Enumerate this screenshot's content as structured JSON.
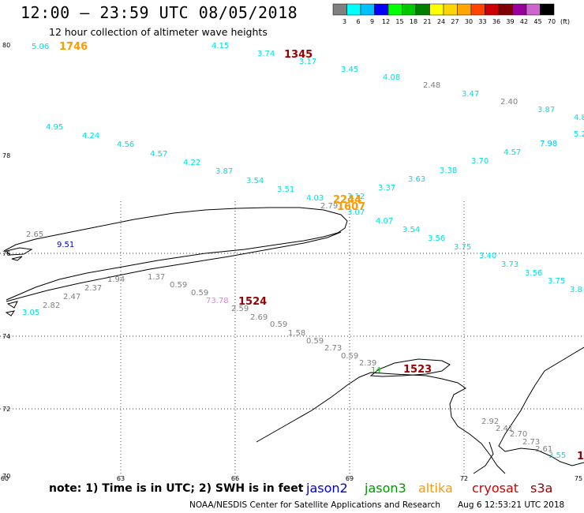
{
  "header": {
    "title": "12:00 – 23:59 UTC 08/05/2018",
    "subtitle": "12 hour collection of altimeter wave heights"
  },
  "scale": {
    "unit": "(ft)",
    "ticks": [
      "3",
      "6",
      "9",
      "12",
      "15",
      "18",
      "21",
      "24",
      "27",
      "30",
      "33",
      "36",
      "39",
      "42",
      "45",
      "70"
    ],
    "colors": [
      "#808080",
      "#00ffff",
      "#00bfff",
      "#0000ff",
      "#00ff00",
      "#00c800",
      "#008000",
      "#ffff00",
      "#ffd700",
      "#ffa500",
      "#ff4500",
      "#cc0000",
      "#800000",
      "#990099",
      "#cc66cc",
      "#000000"
    ]
  },
  "map": {
    "lat_labels": [
      "80",
      "78",
      "76",
      "74",
      "72",
      "70"
    ],
    "lon_labels": [
      "60",
      "63",
      "66",
      "69",
      "72",
      "75"
    ]
  },
  "observations": [
    {
      "text": "5.06",
      "color": "#00e0e0"
    },
    {
      "text": "4.15",
      "color": "#00e0e0"
    },
    {
      "text": "3.74",
      "color": "#00e0e0"
    },
    {
      "text": "3.17",
      "color": "#00e0e0"
    },
    {
      "text": "3.45",
      "color": "#00e0e0"
    },
    {
      "text": "4.08",
      "color": "#00e0e0"
    },
    {
      "text": "2.48",
      "color": "#808080"
    },
    {
      "text": "3.47",
      "color": "#00e0e0"
    },
    {
      "text": "2.40",
      "color": "#808080"
    },
    {
      "text": "3.87",
      "color": "#00e0e0"
    },
    {
      "text": "4.8",
      "color": "#00e0e0"
    },
    {
      "text": "5.2",
      "color": "#00e0e0"
    },
    {
      "text": "7.98",
      "color": "#00bfff"
    },
    {
      "text": "4.57",
      "color": "#00e0e0"
    },
    {
      "text": "3.70",
      "color": "#00e0e0"
    },
    {
      "text": "3.38",
      "color": "#00e0e0"
    },
    {
      "text": "3.63",
      "color": "#00e0e0"
    },
    {
      "text": "3.37",
      "color": "#00e0e0"
    },
    {
      "text": "4.95",
      "color": "#00e0e0"
    },
    {
      "text": "4.24",
      "color": "#00e0e0"
    },
    {
      "text": "4.56",
      "color": "#00e0e0"
    },
    {
      "text": "4.57",
      "color": "#00e0e0"
    },
    {
      "text": "4.22",
      "color": "#00e0e0"
    },
    {
      "text": "3.87",
      "color": "#00e0e0"
    },
    {
      "text": "3.54",
      "color": "#00e0e0"
    },
    {
      "text": "3.51",
      "color": "#00e0e0"
    },
    {
      "text": "4.03",
      "color": "#00e0e0"
    },
    {
      "text": "2.79",
      "color": "#808080"
    },
    {
      "text": "3.12",
      "color": "#00e0e0"
    },
    {
      "text": "3.07",
      "color": "#00e0e0"
    },
    {
      "text": "4.07",
      "color": "#00e0e0"
    },
    {
      "text": "3.54",
      "color": "#00e0e0"
    },
    {
      "text": "3.56",
      "color": "#00e0e0"
    },
    {
      "text": "3.75",
      "color": "#00e0e0"
    },
    {
      "text": "3.40",
      "color": "#00e0e0"
    },
    {
      "text": "3.73",
      "color": "#00e0e0"
    },
    {
      "text": "3.56",
      "color": "#00e0e0"
    },
    {
      "text": "3.75",
      "color": "#00e0e0"
    },
    {
      "text": "3.8",
      "color": "#00e0e0"
    },
    {
      "text": "2.65",
      "color": "#808080"
    },
    {
      "text": "9.51",
      "color": "#0000cc"
    },
    {
      "text": "1.94",
      "color": "#808080"
    },
    {
      "text": "1.37",
      "color": "#808080"
    },
    {
      "text": "2.37",
      "color": "#808080"
    },
    {
      "text": "2.47",
      "color": "#808080"
    },
    {
      "text": "2.82",
      "color": "#808080"
    },
    {
      "text": "3.05",
      "color": "#00e0e0"
    },
    {
      "text": "0.59",
      "color": "#808080"
    },
    {
      "text": "0.59",
      "color": "#808080"
    },
    {
      "text": "73.78",
      "color": "#e080e0"
    },
    {
      "text": "2.59",
      "color": "#808080"
    },
    {
      "text": "2.69",
      "color": "#808080"
    },
    {
      "text": "0.59",
      "color": "#808080"
    },
    {
      "text": "1.58",
      "color": "#808080"
    },
    {
      "text": "0.59",
      "color": "#808080"
    },
    {
      "text": "2.73",
      "color": "#808080"
    },
    {
      "text": "0.59",
      "color": "#808080"
    },
    {
      "text": "2.39",
      "color": "#808080"
    },
    {
      "text": "14",
      "color": "#00d000"
    },
    {
      "text": "2.92",
      "color": "#808080"
    },
    {
      "text": "2.41",
      "color": "#808080"
    },
    {
      "text": "2.70",
      "color": "#808080"
    },
    {
      "text": "2.73",
      "color": "#808080"
    },
    {
      "text": "2.61",
      "color": "#808080"
    },
    {
      "text": "3.55",
      "color": "#00e0e0"
    }
  ],
  "time_labels": [
    {
      "text": "1746",
      "color": "#ff9900"
    },
    {
      "text": "1345",
      "color": "#990000"
    },
    {
      "text": "2244",
      "color": "#ff9900"
    },
    {
      "text": "1607",
      "color": "#ff9900"
    },
    {
      "text": "1524",
      "color": "#990000"
    },
    {
      "text": "1523",
      "color": "#990000"
    },
    {
      "text": "1",
      "color": "#990000"
    }
  ],
  "footer": {
    "note": "note:  1) Time is in UTC;  2) SWH is in feet",
    "satellites": [
      {
        "name": "jason2",
        "color": "#0000cc"
      },
      {
        "name": "jason3",
        "color": "#009900"
      },
      {
        "name": "altika",
        "color": "#ff9900"
      },
      {
        "name": "cryosat",
        "color": "#cc0000"
      },
      {
        "name": "s3a",
        "color": "#990000"
      }
    ],
    "credit": "NOAA/NESDIS Center for Satellite Applications and Research",
    "timestamp": "Aug  6 12:53:21 UTC 2018"
  }
}
